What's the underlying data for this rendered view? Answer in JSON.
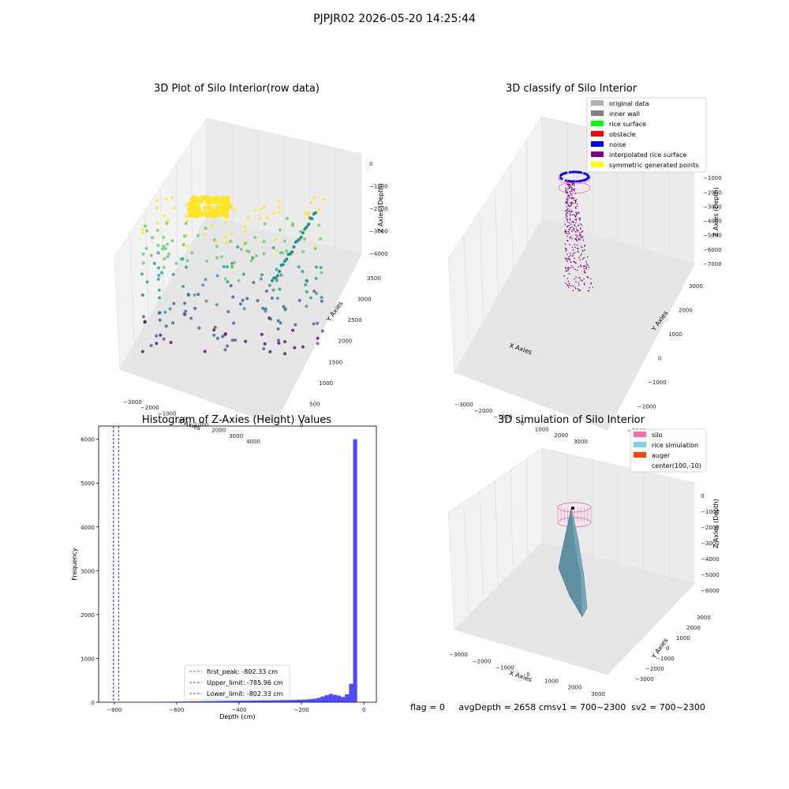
{
  "figure": {
    "suptitle": "PJPJR02 2026-05-20 14:25:44"
  },
  "footer": {
    "flag": "flag = 0",
    "avg": "avgDepth = 2658 cmsv1 = 700~2300",
    "sv2": "sv2 = 700~2300"
  },
  "chart_data": [
    {
      "type": "scatter",
      "subtype": "3d",
      "title": "3D Plot of Silo Interior(row data)",
      "xlabel": "X Axies",
      "ylabel": "Y Axies",
      "zlabel": "Z Axies (Depth)",
      "x_ticks": [
        "−3000",
        "−2000",
        "−1000",
        "0",
        "1000",
        "2000",
        "3000",
        "4000"
      ],
      "y_ticks": [
        "0",
        "500",
        "1000",
        "1500",
        "2000",
        "2500",
        "3000",
        "3500"
      ],
      "z_ticks": [
        "0",
        "−1000",
        "−2000",
        "−3000",
        "−4000"
      ],
      "colormap": "viridis",
      "colors": [
        "#440154",
        "#3b528b",
        "#21918c",
        "#5ec962",
        "#fde725"
      ],
      "clusters": [
        {
          "label": "yellow dense cap near top",
          "color": "#fde725",
          "x": [
            -600,
            0
          ],
          "y": [
            2000,
            2800
          ],
          "z": [
            -300,
            -600
          ]
        },
        {
          "label": "teal points along right edge",
          "color": "#21918c",
          "x": [
            2500,
            4000
          ],
          "y": [
            500,
            3500
          ],
          "z": [
            -2000,
            -4000
          ]
        },
        {
          "label": "purple points at bottom",
          "color": "#440154",
          "x": [
            0,
            2000
          ],
          "y": [
            500,
            1500
          ],
          "z": [
            -3500,
            -4300
          ]
        }
      ]
    },
    {
      "type": "scatter",
      "subtype": "3d",
      "title": "3D classify of Silo Interior",
      "zlabel": "Z Axies (Depth)",
      "xlabel": "X Axies",
      "ylabel": "Y Axies",
      "x_ticks": [
        "−3000",
        "−2000",
        "−1000",
        "0",
        "1000",
        "2000",
        "3000"
      ],
      "y_ticks": [
        "−3000",
        "−2000",
        "−1000",
        "0",
        "1000",
        "2000",
        "3000"
      ],
      "z_ticks": [
        "0",
        "−1000",
        "−2000",
        "−3000",
        "−4000",
        "−5000",
        "−6000",
        "−7000"
      ],
      "legend": [
        {
          "label": "original data",
          "color": "#b0b0b0"
        },
        {
          "label": "inner wall",
          "color": "#808080"
        },
        {
          "label": "rice surface",
          "color": "#00ff00"
        },
        {
          "label": "obstacle",
          "color": "#ff0000"
        },
        {
          "label": "noise",
          "color": "#0000ff"
        },
        {
          "label": "interpolated rice surface",
          "color": "#800080"
        },
        {
          "label": "symmetric generated points",
          "color": "#ffff00"
        }
      ],
      "legend_position": "top-right"
    },
    {
      "type": "bar",
      "subtype": "histogram",
      "title": "Histogram of Z-Axies (Height) Values",
      "xlabel": "Depth (cm)",
      "ylabel": "Frequency",
      "xlim": [
        -850,
        40
      ],
      "ylim": [
        0,
        6300
      ],
      "x_ticks": [
        "−800",
        "−600",
        "−400",
        "−200",
        "0"
      ],
      "y_ticks": [
        "0",
        "1000",
        "2000",
        "3000",
        "4000",
        "5000",
        "6000"
      ],
      "bar_color": "#0000ff",
      "bin_width": 13,
      "bins": [
        {
          "x": -678,
          "count": 5
        },
        {
          "x": -665,
          "count": 0
        },
        {
          "x": -652,
          "count": 5
        },
        {
          "x": -639,
          "count": 8
        },
        {
          "x": -626,
          "count": 10
        },
        {
          "x": -613,
          "count": 12
        },
        {
          "x": -600,
          "count": 12
        },
        {
          "x": -587,
          "count": 14
        },
        {
          "x": -574,
          "count": 16
        },
        {
          "x": -561,
          "count": 17
        },
        {
          "x": -548,
          "count": 18
        },
        {
          "x": -535,
          "count": 19
        },
        {
          "x": -522,
          "count": 20
        },
        {
          "x": -509,
          "count": 22
        },
        {
          "x": -496,
          "count": 24
        },
        {
          "x": -483,
          "count": 25
        },
        {
          "x": -470,
          "count": 27
        },
        {
          "x": -457,
          "count": 28
        },
        {
          "x": -444,
          "count": 30
        },
        {
          "x": -431,
          "count": 31
        },
        {
          "x": -418,
          "count": 32
        },
        {
          "x": -405,
          "count": 33
        },
        {
          "x": -392,
          "count": 34
        },
        {
          "x": -379,
          "count": 35
        },
        {
          "x": -366,
          "count": 36
        },
        {
          "x": -353,
          "count": 37
        },
        {
          "x": -340,
          "count": 38
        },
        {
          "x": -327,
          "count": 39
        },
        {
          "x": -314,
          "count": 40
        },
        {
          "x": -301,
          "count": 41
        },
        {
          "x": -288,
          "count": 42
        },
        {
          "x": -275,
          "count": 43
        },
        {
          "x": -262,
          "count": 45
        },
        {
          "x": -249,
          "count": 47
        },
        {
          "x": -236,
          "count": 50
        },
        {
          "x": -223,
          "count": 52
        },
        {
          "x": -210,
          "count": 55
        },
        {
          "x": -197,
          "count": 58
        },
        {
          "x": -184,
          "count": 62
        },
        {
          "x": -171,
          "count": 70
        },
        {
          "x": -158,
          "count": 80
        },
        {
          "x": -145,
          "count": 100
        },
        {
          "x": -132,
          "count": 130
        },
        {
          "x": -119,
          "count": 160
        },
        {
          "x": -106,
          "count": 190
        },
        {
          "x": -93,
          "count": 170
        },
        {
          "x": -80,
          "count": 150
        },
        {
          "x": -67,
          "count": 120
        },
        {
          "x": -54,
          "count": 180
        },
        {
          "x": -41,
          "count": 420
        },
        {
          "x": -28,
          "count": 6000
        }
      ],
      "vlines": [
        {
          "label": "first_peak: -802.33 cm",
          "x": -802.33,
          "color": "#ff0000",
          "style": "dashed"
        },
        {
          "label": "Upper_limit: -785.96 cm",
          "x": -785.96,
          "color": "#0000ff",
          "style": "dashed"
        },
        {
          "label": "Lower_limit: -802.33 cm",
          "x": -802.33,
          "color": "#0000ff",
          "style": "dashed"
        }
      ],
      "legend_position": "lower-center"
    },
    {
      "type": "area",
      "subtype": "3d-surface",
      "title": "3D simulation of Silo Interior",
      "xlabel": "X Axies",
      "ylabel": "Y Axies",
      "zlabel": "Z Axies (Depth)",
      "x_ticks": [
        "−3000",
        "−2000",
        "−1000",
        "0",
        "1000",
        "2000",
        "3000"
      ],
      "y_ticks": [
        "−3000",
        "−2000",
        "−1000",
        "0",
        "1000",
        "2000",
        "3000"
      ],
      "z_ticks": [
        "0",
        "−1000",
        "−2000",
        "−3000",
        "−4000",
        "−5000",
        "−6000"
      ],
      "legend": [
        {
          "label": "silo",
          "color": "#ff69b4"
        },
        {
          "label": "rice simulation",
          "color": "#87ceeb"
        },
        {
          "label": "auger",
          "color": "#ff4500"
        },
        {
          "label": "center(100,-10)",
          "color": "#000000"
        }
      ],
      "legend_position": "top-right"
    }
  ]
}
